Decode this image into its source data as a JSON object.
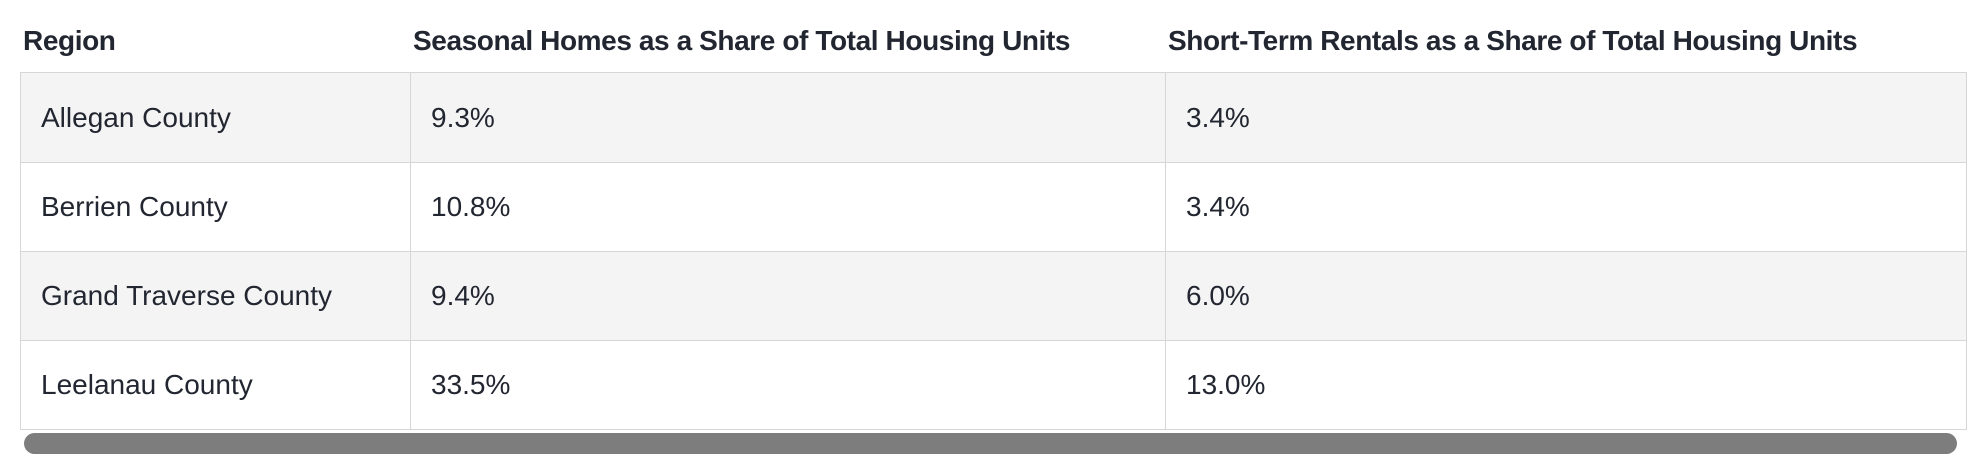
{
  "table": {
    "columns": [
      {
        "label": "Region"
      },
      {
        "label": "Seasonal Homes as a Share of Total Housing Units"
      },
      {
        "label": "Short-Term Rentals as a Share of Total Housing Units"
      }
    ],
    "rows": [
      {
        "region": "Allegan County",
        "seasonal_share": "9.3%",
        "str_share": "3.4%"
      },
      {
        "region": "Berrien County",
        "seasonal_share": "10.8%",
        "str_share": "3.4%"
      },
      {
        "region": "Grand Traverse County",
        "seasonal_share": "9.4%",
        "str_share": "6.0%"
      },
      {
        "region": "Leelanau County",
        "seasonal_share": "33.5%",
        "str_share": "13.0%"
      }
    ]
  },
  "scrollbar": {
    "orientation": "horizontal",
    "thumb_color": "#7d7d7d"
  },
  "colors": {
    "background": "#ffffff",
    "row_stripe": "#f4f4f4",
    "border": "#d6d6d6",
    "text": "#222630"
  }
}
